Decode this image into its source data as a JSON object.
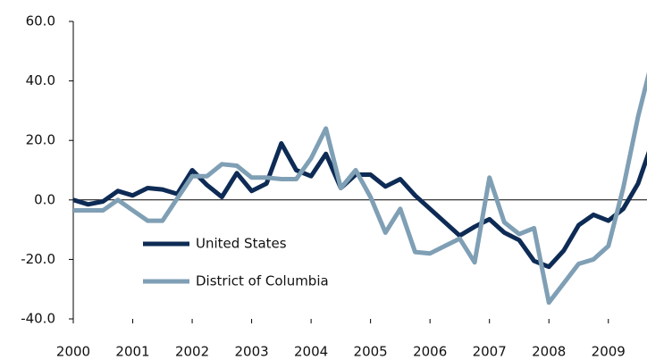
{
  "chart_data": {
    "type": "line",
    "x": [
      2000,
      2000.25,
      2000.5,
      2000.75,
      2001,
      2001.25,
      2001.5,
      2001.75,
      2002,
      2002.25,
      2002.5,
      2002.75,
      2003,
      2003.25,
      2003.5,
      2003.75,
      2004,
      2004.25,
      2004.5,
      2004.75,
      2005,
      2005.25,
      2005.5,
      2005.75,
      2006,
      2006.25,
      2006.5,
      2006.75,
      2007,
      2007.25,
      2007.5,
      2007.75,
      2008,
      2008.25,
      2008.5,
      2008.75,
      2009,
      2009.25,
      2009.5,
      2009.75
    ],
    "series": [
      {
        "name": "United States",
        "color": "#0d2b55",
        "values": [
          0,
          -1.5,
          -0.5,
          3,
          1.5,
          4,
          3.5,
          2,
          10,
          5,
          1,
          9,
          3,
          5.5,
          19,
          10,
          8,
          15.5,
          4,
          8.5,
          8.5,
          4.5,
          7,
          1.5,
          -3,
          -7.5,
          -12,
          -9,
          -6.5,
          -11,
          -13.5,
          -20.5,
          -22.5,
          -17,
          -8.5,
          -5,
          -7,
          -3,
          5.5,
          20
        ]
      },
      {
        "name": "District of Columbia",
        "color": "#7f9fb5",
        "values": [
          -3.5,
          -3.5,
          -3.5,
          0,
          -3.5,
          -7,
          -7,
          0.5,
          8,
          8,
          12,
          11.5,
          7.5,
          7.5,
          7,
          7,
          14,
          24,
          4,
          10,
          1,
          -11,
          -3,
          -17.5,
          -18,
          -15.5,
          -13,
          -21,
          7.5,
          -7.5,
          -11.5,
          -9.5,
          -34.5,
          -28,
          -21.5,
          -20,
          -15.5,
          4,
          28,
          48
        ]
      }
    ],
    "xlim": [
      2000,
      2009.65
    ],
    "xticks": [
      2000,
      2001,
      2002,
      2003,
      2004,
      2005,
      2006,
      2007,
      2008,
      2009
    ],
    "ylim": [
      -40,
      60
    ],
    "yticks": [
      {
        "value": -40,
        "label": "-40.0"
      },
      {
        "value": -20,
        "label": "-20.0"
      },
      {
        "value": 0,
        "label": "0.0"
      },
      {
        "value": 20,
        "label": "20.0"
      },
      {
        "value": 40,
        "label": "40.0"
      },
      {
        "value": 60,
        "label": "60.0"
      }
    ],
    "legend": "bottom-left"
  }
}
